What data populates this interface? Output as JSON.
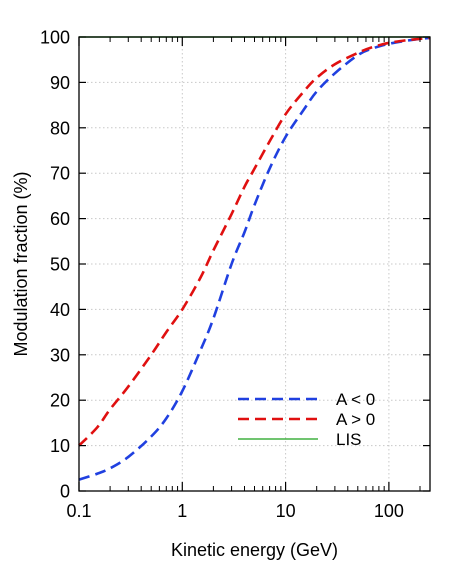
{
  "chart_data": {
    "type": "line",
    "title": "",
    "xlabel": "Kinetic energy (GeV)",
    "ylabel": "Modulation fraction (%)",
    "xscale": "log",
    "xlim": [
      0.1,
      250
    ],
    "ylim": [
      0,
      100
    ],
    "grid": true,
    "legend_position": "lower-right",
    "x_ticks": [
      0.1,
      1,
      10,
      100
    ],
    "x_tick_labels": [
      "0.1",
      "1",
      "10",
      "100"
    ],
    "y_ticks": [
      0,
      10,
      20,
      30,
      40,
      50,
      60,
      70,
      80,
      90,
      100
    ],
    "y_tick_labels": [
      "0",
      "10",
      "20",
      "30",
      "40",
      "50",
      "60",
      "70",
      "80",
      "90",
      "100"
    ],
    "series": [
      {
        "name": "A < 0",
        "color": "#2040e0",
        "style": "dashed",
        "x": [
          0.1,
          0.15,
          0.2,
          0.3,
          0.5,
          0.7,
          1,
          1.5,
          2,
          3,
          4,
          5,
          7,
          10,
          15,
          20,
          30,
          50,
          70,
          100,
          150,
          200,
          250
        ],
        "y": [
          2.5,
          3.8,
          5.0,
          7.5,
          12,
          16,
          22,
          31,
          38,
          50,
          57,
          63,
          71,
          78,
          84,
          88,
          92,
          96,
          97.5,
          98.5,
          99.2,
          99.6,
          99.8
        ]
      },
      {
        "name": "A > 0",
        "color": "#e01010",
        "style": "dashed",
        "x": [
          0.1,
          0.15,
          0.2,
          0.3,
          0.5,
          0.7,
          1,
          1.5,
          2,
          3,
          4,
          5,
          7,
          10,
          15,
          20,
          30,
          50,
          70,
          100,
          150,
          200,
          250
        ],
        "y": [
          10,
          14,
          18,
          23,
          30,
          35,
          40,
          47,
          53,
          61,
          67,
          71,
          77,
          83,
          88,
          91,
          94,
          96.5,
          97.8,
          98.7,
          99.3,
          99.6,
          99.8
        ]
      },
      {
        "name": "LIS",
        "color": "#40b040",
        "style": "solid",
        "x": [
          0.1,
          250
        ],
        "y": [
          100,
          100
        ]
      }
    ]
  }
}
